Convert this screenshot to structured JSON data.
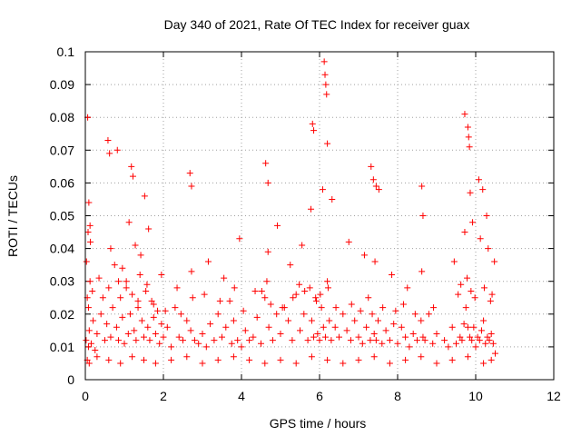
{
  "chart_data": {
    "type": "scatter",
    "title": "Day 340 of 2021, Rate Of TEC Index for receiver guax",
    "xlabel": "GPS time / hours",
    "ylabel": "ROTI / TECUs",
    "xlim": [
      0,
      12
    ],
    "ylim": [
      0,
      0.1
    ],
    "x_ticks": [
      "0",
      "2",
      "4",
      "6",
      "8",
      "10",
      "12"
    ],
    "y_ticks": [
      "0",
      "0.01",
      "0.02",
      "0.03",
      "0.04",
      "0.05",
      "0.06",
      "0.07",
      "0.08",
      "0.09",
      "0.1"
    ],
    "grid": true,
    "legend": "none",
    "marker": "plus",
    "color": "#ff0000",
    "series": [
      {
        "x": [
          0.02,
          0.05,
          0.08,
          0.1,
          0.12,
          0.15,
          0.2,
          0.25,
          0.3,
          0.4,
          0.5,
          0.55,
          0.6,
          0.65,
          0.7,
          0.75,
          0.8,
          0.85,
          0.9,
          0.95,
          1.0,
          1.05,
          1.1,
          1.15,
          1.2,
          1.25,
          1.3,
          1.35,
          1.4,
          1.45,
          1.5,
          1.55,
          1.6,
          1.65,
          1.7,
          1.75,
          1.8,
          1.85,
          1.9,
          1.95,
          2.0,
          2.1,
          2.2,
          2.3,
          2.4,
          2.5,
          2.6,
          2.7,
          2.75,
          2.8,
          2.9,
          3.0,
          3.1,
          3.2,
          3.3,
          3.4,
          3.5,
          3.6,
          3.7,
          3.75,
          3.8,
          3.9,
          4.0,
          4.1,
          4.2,
          4.3,
          4.4,
          4.5,
          4.6,
          4.65,
          4.7,
          4.8,
          4.9,
          5.0,
          5.1,
          5.2,
          5.3,
          5.4,
          5.5,
          5.6,
          5.7,
          5.75,
          5.8,
          5.85,
          5.9,
          5.95,
          6.0,
          6.05,
          6.1,
          6.15,
          6.2,
          6.25,
          6.3,
          6.4,
          6.5,
          6.6,
          6.7,
          6.8,
          6.9,
          7.0,
          7.1,
          7.2,
          7.3,
          7.35,
          7.4,
          7.45,
          7.5,
          7.6,
          7.7,
          7.8,
          7.9,
          8.0,
          8.1,
          8.2,
          8.3,
          8.4,
          8.5,
          8.6,
          8.65,
          8.7,
          8.8,
          8.9,
          9.0,
          9.2,
          9.3,
          9.4,
          9.5,
          9.6,
          9.65,
          9.7,
          9.75,
          9.8,
          9.85,
          9.9,
          9.95,
          10.0,
          10.05,
          10.1,
          10.15,
          10.2,
          10.25,
          10.3,
          10.35,
          10.4,
          10.45,
          10.5,
          0.05,
          0.1,
          0.3,
          0.6,
          0.9,
          1.2,
          1.5,
          1.8,
          2.2,
          2.6,
          3.0,
          3.4,
          3.8,
          4.2,
          4.6,
          5.0,
          5.4,
          5.8,
          6.2,
          6.6,
          7.0,
          7.4,
          7.8,
          8.2,
          8.6,
          9.0,
          9.4,
          9.8,
          10.2,
          10.4,
          0.03,
          0.07,
          0.13,
          0.35,
          0.65,
          0.95,
          1.12,
          1.28,
          1.42,
          1.62,
          1.95,
          2.35,
          2.72,
          3.15,
          3.55,
          3.95,
          4.35,
          4.68,
          4.92,
          5.25,
          5.55,
          5.78,
          6.08,
          6.32,
          6.75,
          7.15,
          7.42,
          7.85,
          8.25,
          8.62,
          9.45,
          9.72,
          9.92,
          10.12,
          10.32,
          10.48,
          0.06,
          0.09,
          0.12,
          0.58,
          0.62,
          0.82,
          1.18,
          1.22,
          1.52,
          2.68,
          2.72,
          4.62,
          4.68,
          5.82,
          5.85,
          6.12,
          6.14,
          6.16,
          6.18,
          6.2,
          7.32,
          7.38,
          7.45,
          7.52,
          8.62,
          8.65,
          9.72,
          9.8,
          9.82,
          9.84,
          9.86,
          10.08,
          10.18,
          10.28,
          0.08,
          0.18,
          0.45,
          0.85,
          1.05,
          1.35,
          1.58,
          1.75,
          2.05,
          2.45,
          3.05,
          3.45,
          3.82,
          4.05,
          4.52,
          4.75,
          5.05,
          5.32,
          5.48,
          5.62,
          5.92,
          6.02,
          6.22,
          6.42,
          6.82,
          7.05,
          7.25,
          7.62,
          7.95,
          8.15,
          8.45,
          8.92,
          9.55,
          9.62,
          9.78,
          9.88,
          9.98,
          10.22,
          10.38,
          10.42
        ],
        "y": [
          0.012,
          0.025,
          0.01,
          0.015,
          0.03,
          0.011,
          0.018,
          0.009,
          0.014,
          0.02,
          0.012,
          0.017,
          0.028,
          0.013,
          0.022,
          0.035,
          0.016,
          0.012,
          0.025,
          0.019,
          0.011,
          0.03,
          0.014,
          0.02,
          0.026,
          0.015,
          0.012,
          0.022,
          0.032,
          0.018,
          0.013,
          0.027,
          0.016,
          0.012,
          0.024,
          0.019,
          0.014,
          0.021,
          0.011,
          0.017,
          0.013,
          0.016,
          0.01,
          0.022,
          0.013,
          0.012,
          0.018,
          0.015,
          0.025,
          0.012,
          0.011,
          0.014,
          0.01,
          0.017,
          0.012,
          0.02,
          0.013,
          0.016,
          0.024,
          0.011,
          0.018,
          0.012,
          0.01,
          0.015,
          0.012,
          0.013,
          0.019,
          0.011,
          0.025,
          0.03,
          0.016,
          0.012,
          0.02,
          0.014,
          0.022,
          0.018,
          0.012,
          0.026,
          0.015,
          0.02,
          0.012,
          0.028,
          0.018,
          0.013,
          0.025,
          0.014,
          0.012,
          0.022,
          0.016,
          0.013,
          0.03,
          0.018,
          0.012,
          0.016,
          0.013,
          0.02,
          0.015,
          0.012,
          0.018,
          0.013,
          0.011,
          0.016,
          0.012,
          0.02,
          0.014,
          0.012,
          0.018,
          0.011,
          0.015,
          0.012,
          0.017,
          0.011,
          0.016,
          0.013,
          0.01,
          0.014,
          0.012,
          0.018,
          0.013,
          0.012,
          0.02,
          0.011,
          0.014,
          0.012,
          0.01,
          0.016,
          0.011,
          0.013,
          0.012,
          0.017,
          0.022,
          0.016,
          0.013,
          0.012,
          0.016,
          0.01,
          0.013,
          0.012,
          0.015,
          0.018,
          0.011,
          0.013,
          0.012,
          0.014,
          0.011,
          0.008,
          0.006,
          0.005,
          0.007,
          0.006,
          0.005,
          0.007,
          0.006,
          0.005,
          0.006,
          0.007,
          0.005,
          0.006,
          0.007,
          0.006,
          0.005,
          0.006,
          0.005,
          0.007,
          0.006,
          0.005,
          0.006,
          0.007,
          0.005,
          0.006,
          0.007,
          0.005,
          0.006,
          0.007,
          0.005,
          0.006,
          0.036,
          0.045,
          0.042,
          0.031,
          0.04,
          0.034,
          0.048,
          0.041,
          0.038,
          0.046,
          0.032,
          0.028,
          0.033,
          0.036,
          0.031,
          0.043,
          0.027,
          0.039,
          0.047,
          0.035,
          0.041,
          0.052,
          0.058,
          0.055,
          0.042,
          0.038,
          0.036,
          0.032,
          0.028,
          0.033,
          0.036,
          0.045,
          0.048,
          0.043,
          0.04,
          0.036,
          0.08,
          0.054,
          0.047,
          0.073,
          0.069,
          0.07,
          0.065,
          0.062,
          0.056,
          0.063,
          0.059,
          0.066,
          0.06,
          0.078,
          0.076,
          0.097,
          0.093,
          0.09,
          0.087,
          0.072,
          0.065,
          0.061,
          0.059,
          0.058,
          0.059,
          0.05,
          0.081,
          0.077,
          0.074,
          0.071,
          0.057,
          0.061,
          0.058,
          0.05,
          0.022,
          0.027,
          0.025,
          0.03,
          0.028,
          0.024,
          0.029,
          0.023,
          0.021,
          0.02,
          0.026,
          0.024,
          0.028,
          0.021,
          0.027,
          0.023,
          0.022,
          0.025,
          0.029,
          0.027,
          0.024,
          0.026,
          0.028,
          0.022,
          0.023,
          0.021,
          0.025,
          0.022,
          0.021,
          0.023,
          0.02,
          0.022,
          0.026,
          0.029,
          0.031,
          0.027,
          0.025,
          0.028,
          0.024,
          0.026
        ]
      }
    ]
  }
}
